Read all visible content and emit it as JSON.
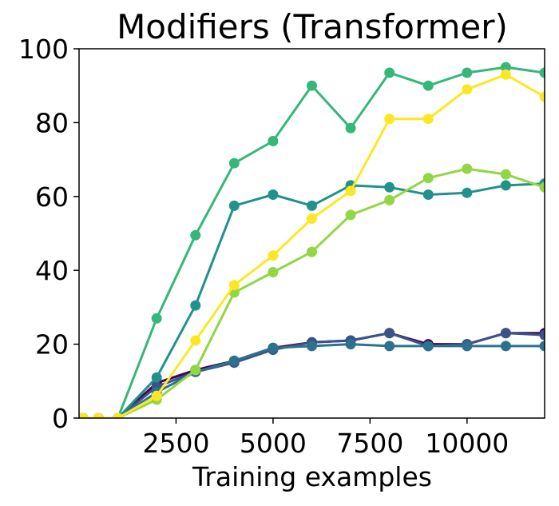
{
  "chart_data": {
    "type": "line",
    "title": "Modifiers (Transformer)",
    "xlabel": "Training examples",
    "ylabel": "",
    "xlim": [
      0,
      12000
    ],
    "ylim": [
      0,
      100
    ],
    "x_ticks": [
      2500,
      5000,
      7500,
      10000
    ],
    "x_tick_labels": [
      "2500",
      "5000",
      "7500",
      "10000"
    ],
    "y_ticks": [
      0,
      20,
      40,
      60,
      80,
      100
    ],
    "y_tick_labels": [
      "0",
      "20",
      "40",
      "60",
      "80",
      "100"
    ],
    "grid": false,
    "legend": "none",
    "x": [
      100,
      500,
      1000,
      2000,
      3000,
      4000,
      5000,
      6000,
      7000,
      8000,
      9000,
      10000,
      11000,
      12000
    ],
    "series": [
      {
        "color": "#440154",
        "values": [
          0,
          0,
          0,
          9.5,
          13,
          15.5,
          19,
          20.5,
          21,
          23,
          20,
          20,
          23,
          23
        ]
      },
      {
        "color": "#3b528b",
        "values": [
          0,
          0,
          0,
          8.5,
          12.5,
          15,
          18.5,
          20.5,
          21,
          23,
          19.5,
          20,
          23,
          22.5
        ]
      },
      {
        "color": "#2c728e",
        "values": [
          0,
          0,
          0,
          7,
          12.5,
          15.5,
          19,
          19.5,
          20,
          19.5,
          19.5,
          19.5,
          19.5,
          19.5
        ]
      },
      {
        "color": "#21918c",
        "values": [
          0,
          0,
          0,
          11,
          30.5,
          57.5,
          60.5,
          57.5,
          63,
          62.5,
          60.5,
          61,
          63,
          63.5
        ]
      },
      {
        "color": "#35b779",
        "values": [
          0,
          0,
          0,
          27,
          49.5,
          69,
          75,
          90,
          78.5,
          93.5,
          90,
          93.5,
          95,
          93.5
        ]
      },
      {
        "color": "#90d743",
        "values": [
          0,
          0,
          0,
          5,
          13,
          34,
          39.5,
          45,
          55,
          59,
          65,
          67.5,
          66,
          62.5
        ]
      },
      {
        "color": "#fde725",
        "values": [
          0,
          0,
          0,
          6,
          21,
          36,
          44,
          54,
          61.5,
          81,
          81,
          89,
          93,
          87
        ]
      }
    ]
  }
}
